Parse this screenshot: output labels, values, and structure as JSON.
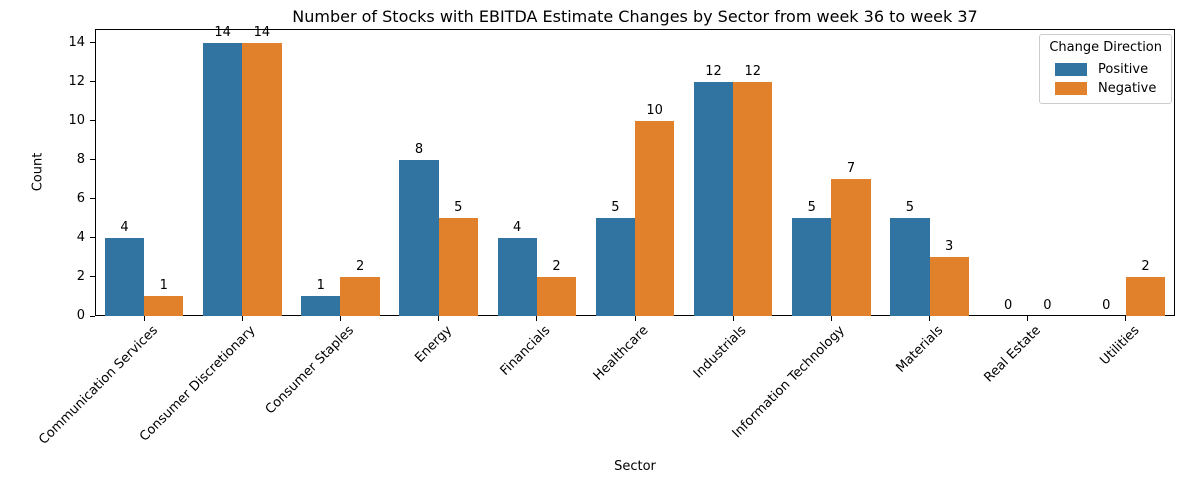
{
  "chart_data": {
    "type": "bar",
    "title": "Number of Stocks with EBITDA Estimate Changes by Sector from week 36 to week 37",
    "xlabel": "Sector",
    "ylabel": "Count",
    "categories": [
      "Communication Services",
      "Consumer Discretionary",
      "Consumer Staples",
      "Energy",
      "Financials",
      "Healthcare",
      "Industrials",
      "Information Technology",
      "Materials",
      "Real Estate",
      "Utilities"
    ],
    "series": [
      {
        "name": "Positive",
        "color": "#3274a1",
        "values": [
          4,
          14,
          1,
          8,
          4,
          5,
          12,
          5,
          5,
          0,
          0
        ]
      },
      {
        "name": "Negative",
        "color": "#e1812c",
        "values": [
          1,
          14,
          2,
          5,
          2,
          10,
          12,
          7,
          3,
          0,
          2
        ]
      }
    ],
    "ylim": [
      0,
      14.7
    ],
    "yticks": [
      0,
      2,
      4,
      6,
      8,
      10,
      12,
      14
    ],
    "bar_value_labels": true,
    "grid": false,
    "legend": {
      "title": "Change Direction",
      "position": "upper right"
    }
  }
}
